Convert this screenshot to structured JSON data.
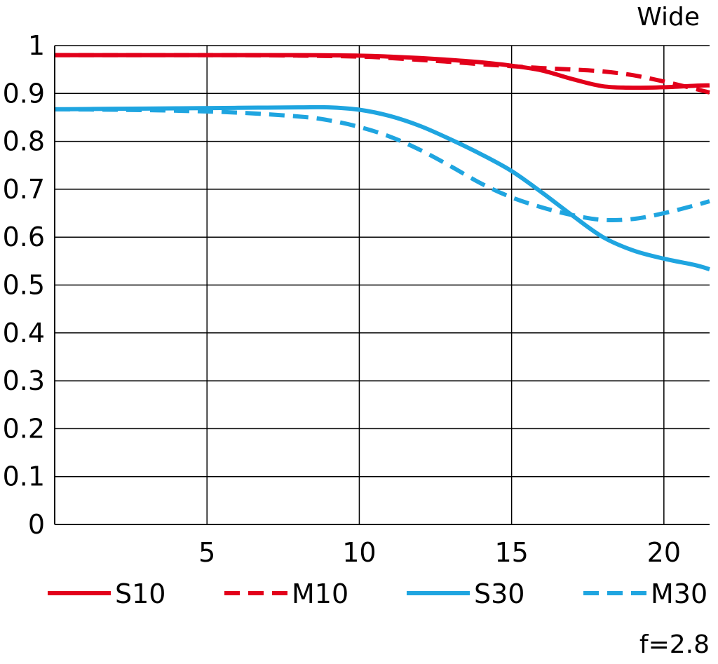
{
  "chart_data": {
    "type": "line",
    "title": "Wide",
    "annotation": "f=2.8",
    "xlabel": "",
    "ylabel": "",
    "xlim": [
      0,
      21.5
    ],
    "ylim": [
      0,
      1
    ],
    "x_ticks": [
      5,
      10,
      15,
      20
    ],
    "y_ticks": [
      0,
      0.1,
      0.2,
      0.3,
      0.4,
      0.5,
      0.6,
      0.7,
      0.8,
      0.9,
      1
    ],
    "y_tick_labels": [
      "0",
      "0.1",
      "0.2",
      "0.3",
      "0.4",
      "0.5",
      "0.6",
      "0.7",
      "0.8",
      "0.9",
      "1"
    ],
    "grid": true,
    "legend_position": "bottom",
    "series": [
      {
        "name": "S10",
        "color": "#e2001a",
        "style": "solid",
        "x": [
          0,
          2,
          4,
          6,
          8,
          10,
          11,
          12,
          13,
          14,
          15,
          16,
          17,
          18,
          19,
          20,
          21,
          21.5
        ],
        "y": [
          0.98,
          0.98,
          0.98,
          0.98,
          0.98,
          0.979,
          0.977,
          0.974,
          0.97,
          0.965,
          0.958,
          0.948,
          0.93,
          0.915,
          0.912,
          0.913,
          0.916,
          0.917
        ]
      },
      {
        "name": "M10",
        "color": "#e2001a",
        "style": "dashed",
        "x": [
          0,
          2,
          4,
          6,
          8,
          10,
          11,
          12,
          13,
          14,
          15,
          16,
          17,
          18,
          19,
          20,
          21,
          21.5
        ],
        "y": [
          0.98,
          0.98,
          0.98,
          0.98,
          0.979,
          0.977,
          0.974,
          0.97,
          0.966,
          0.961,
          0.957,
          0.953,
          0.95,
          0.946,
          0.938,
          0.925,
          0.91,
          0.902
        ]
      },
      {
        "name": "S30",
        "color": "#1fa5e0",
        "style": "solid",
        "x": [
          0,
          2,
          4,
          6,
          8,
          9,
          10,
          11,
          12,
          13,
          14,
          15,
          16,
          17,
          18,
          19,
          20,
          21,
          21.5
        ],
        "y": [
          0.867,
          0.868,
          0.869,
          0.87,
          0.871,
          0.871,
          0.866,
          0.853,
          0.832,
          0.804,
          0.773,
          0.738,
          0.693,
          0.645,
          0.6,
          0.572,
          0.555,
          0.542,
          0.533
        ]
      },
      {
        "name": "M30",
        "color": "#1fa5e0",
        "style": "dashed",
        "x": [
          0,
          2,
          4,
          6,
          8,
          9,
          10,
          11,
          12,
          13,
          14,
          15,
          16,
          17,
          18,
          19,
          20,
          21,
          21.5
        ],
        "y": [
          0.867,
          0.866,
          0.864,
          0.86,
          0.852,
          0.844,
          0.83,
          0.81,
          0.782,
          0.748,
          0.712,
          0.683,
          0.662,
          0.646,
          0.636,
          0.638,
          0.65,
          0.666,
          0.675
        ]
      }
    ]
  }
}
